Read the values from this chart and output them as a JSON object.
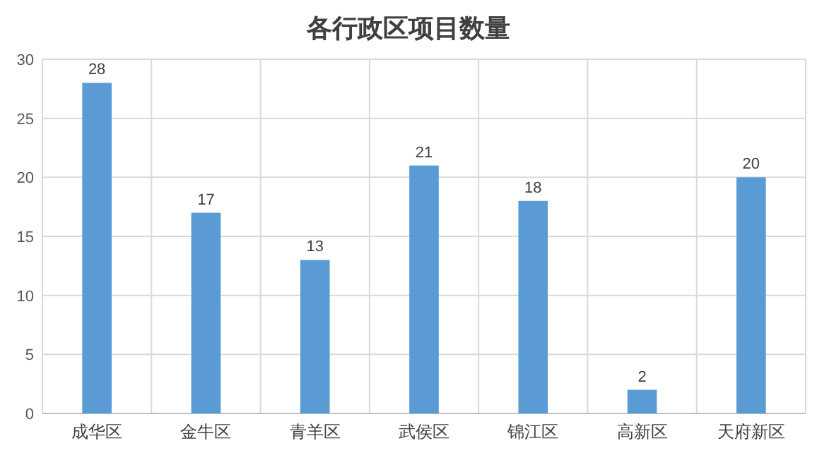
{
  "chart_data": {
    "type": "bar",
    "title": "各行政区项目数量",
    "categories": [
      "成华区",
      "金牛区",
      "青羊区",
      "武侯区",
      "锦江区",
      "高新区",
      "天府新区"
    ],
    "values": [
      28,
      17,
      13,
      21,
      18,
      2,
      20
    ],
    "color": "#5b9bd5",
    "ylim": [
      0,
      30
    ],
    "yticks": [
      0,
      5,
      10,
      15,
      20,
      25,
      30
    ],
    "grid": true,
    "data_labels": true
  }
}
